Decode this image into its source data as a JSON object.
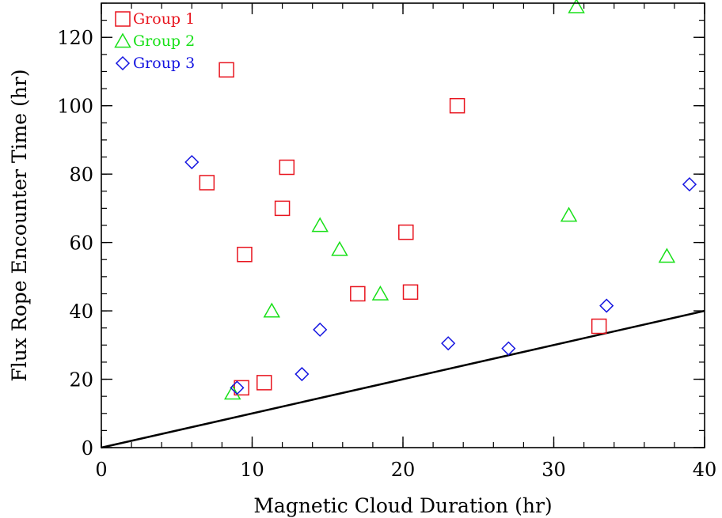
{
  "chart_data": {
    "type": "scatter",
    "title": "",
    "xlabel": "Magnetic Cloud Duration (hr)",
    "ylabel": "Flux Rope Encounter Time (hr)",
    "xlim": [
      0,
      40
    ],
    "ylim": [
      0,
      130
    ],
    "x_ticks": [
      0,
      10,
      20,
      30,
      40
    ],
    "y_ticks": [
      0,
      20,
      40,
      60,
      80,
      100,
      120
    ],
    "x_minor_step": 2,
    "y_minor_step": 5,
    "grid": false,
    "legend_position": "top-left",
    "series": [
      {
        "name": "Group 1",
        "marker": "square",
        "color": "#e8141e",
        "points": [
          [
            8.3,
            110.5
          ],
          [
            7.0,
            77.5
          ],
          [
            9.5,
            56.5
          ],
          [
            12.3,
            82.0
          ],
          [
            12.0,
            70.0
          ],
          [
            17.0,
            45.0
          ],
          [
            20.2,
            63.0
          ],
          [
            20.5,
            45.5
          ],
          [
            23.6,
            100.0
          ],
          [
            9.3,
            17.5
          ],
          [
            10.8,
            19.0
          ],
          [
            33.0,
            35.5
          ]
        ]
      },
      {
        "name": "Group 2",
        "marker": "triangle",
        "color": "#18e018",
        "points": [
          [
            31.5,
            129.0
          ],
          [
            14.5,
            65.0
          ],
          [
            15.8,
            58.0
          ],
          [
            11.3,
            40.0
          ],
          [
            18.5,
            45.0
          ],
          [
            31.0,
            68.0
          ],
          [
            37.5,
            56.0
          ],
          [
            8.7,
            16.0
          ]
        ]
      },
      {
        "name": "Group 3",
        "marker": "diamond",
        "color": "#1414e0",
        "points": [
          [
            6.0,
            83.5
          ],
          [
            14.5,
            34.5
          ],
          [
            13.3,
            21.5
          ],
          [
            9.0,
            17.5
          ],
          [
            23.0,
            30.5
          ],
          [
            27.0,
            29.0
          ],
          [
            33.5,
            41.5
          ],
          [
            39.0,
            77.0
          ]
        ]
      }
    ],
    "reference_line": {
      "from": [
        0,
        0
      ],
      "to": [
        40,
        40
      ],
      "color": "#000000"
    }
  }
}
